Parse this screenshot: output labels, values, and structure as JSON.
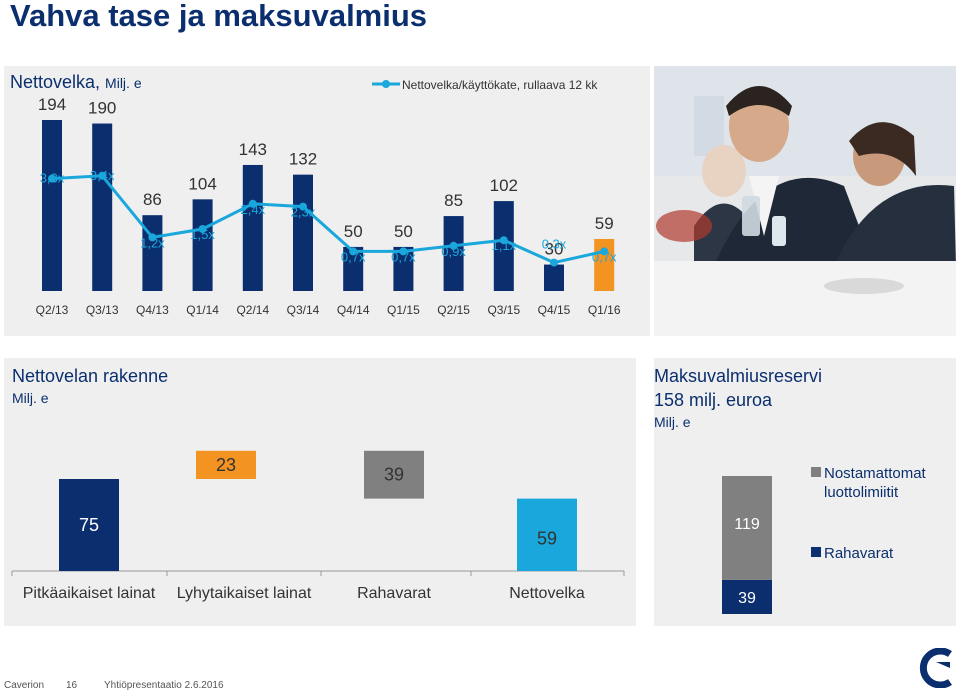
{
  "page": {
    "title": "Vahva tase ja maksuvalmius"
  },
  "colors": {
    "navy": "#0b2f6e",
    "cyan": "#19a7dc",
    "orange": "#f39322",
    "gray": "#808080",
    "panel": "#efefef"
  },
  "chart_data": [
    {
      "type": "bar",
      "title": "Nettovelka, Milj. e",
      "categories": [
        "Q2/13",
        "Q3/13",
        "Q4/13",
        "Q1/14",
        "Q2/14",
        "Q3/14",
        "Q4/14",
        "Q1/15",
        "Q2/15",
        "Q3/15",
        "Q4/15",
        "Q1/16"
      ],
      "series": [
        {
          "name": "Nettovelka",
          "values": [
            194,
            190,
            86,
            104,
            143,
            132,
            50,
            50,
            85,
            102,
            30,
            59
          ]
        },
        {
          "name": "Nettovelka/käyttökate, rullaava 12 kk",
          "type": "line",
          "values": [
            3.3,
            3.4,
            1.2,
            1.5,
            2.4,
            2.3,
            0.7,
            0.7,
            0.9,
            1.1,
            0.3,
            0.7
          ],
          "labels": [
            "3,3x",
            "3,4x",
            "1,2x",
            "1,5x",
            "2,4x",
            "2,3x",
            "0,7x",
            "0,7x",
            "0,9x",
            "1,1x",
            "0,3x",
            "0,7x"
          ]
        }
      ],
      "highlight_last_bar_color": "orange"
    },
    {
      "type": "bar",
      "subtype": "waterfall",
      "title": "Nettovelan rakenne",
      "subtitle": "Milj. e",
      "categories": [
        "Pitkäaikaiset lainat",
        "Lyhytaikaiset lainat",
        "Rahavarat",
        "Nettovelka"
      ],
      "values": [
        75,
        23,
        -39,
        59
      ]
    },
    {
      "type": "bar",
      "subtype": "stacked",
      "title": "Maksuvalmiusreservi",
      "subtitle": "158 milj. euroa",
      "unit_label": "Milj. e",
      "series": [
        {
          "name": "Rahavarat",
          "values": [
            39
          ]
        },
        {
          "name": "Nostamattomat luottolimiitit",
          "values": [
            119
          ]
        }
      ],
      "total": 158
    }
  ],
  "top_chart": {
    "title": "Nettovelka, ",
    "unit": "Milj. e",
    "legend": "Nettovelka/käyttökate, rullaava 12 kk"
  },
  "waterfall_panel": {
    "title": "Nettovelan rakenne",
    "unit": "Milj. e"
  },
  "reserve_panel": {
    "title": "Maksuvalmiusreservi",
    "subtitle": "158 milj. euroa",
    "unit": "Milj. e",
    "legend_top": "Nostamattomat luottolimiitit",
    "legend_bottom": "Rahavarat"
  },
  "footer": {
    "company": "Caverion",
    "page_number": "16",
    "doc": "Yhtiöpresentaatio 2.6.2016"
  }
}
